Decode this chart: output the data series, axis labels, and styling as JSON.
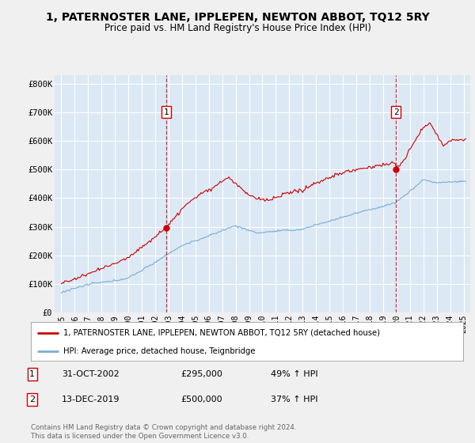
{
  "title": "1, PATERNOSTER LANE, IPPLEPEN, NEWTON ABBOT, TQ12 5RY",
  "subtitle": "Price paid vs. HM Land Registry's House Price Index (HPI)",
  "fig_bg_color": "#f0f0f0",
  "plot_bg_color": "#dce9f5",
  "red_color": "#cc0000",
  "blue_color": "#7aadd4",
  "grid_color": "#ffffff",
  "annotation1": {
    "label": "1",
    "date_idx": 2002.83,
    "price": 295000,
    "x_label": "31-OCT-2002",
    "price_label": "£295,000",
    "pct_label": "49% ↑ HPI"
  },
  "annotation2": {
    "label": "2",
    "date_idx": 2019.95,
    "price": 500000,
    "x_label": "13-DEC-2019",
    "price_label": "£500,000",
    "pct_label": "37% ↑ HPI"
  },
  "legend_line1": "1, PATERNOSTER LANE, IPPLEPEN, NEWTON ABBOT, TQ12 5RY (detached house)",
  "legend_line2": "HPI: Average price, detached house, Teignbridge",
  "footer": "Contains HM Land Registry data © Crown copyright and database right 2024.\nThis data is licensed under the Open Government Licence v3.0.",
  "ylabel_ticks": [
    0,
    100000,
    200000,
    300000,
    400000,
    500000,
    600000,
    700000,
    800000
  ],
  "ylabel_labels": [
    "£0",
    "£100K",
    "£200K",
    "£300K",
    "£400K",
    "£500K",
    "£600K",
    "£700K",
    "£800K"
  ],
  "xlim": [
    1994.5,
    2025.5
  ],
  "ylim": [
    0,
    830000
  ],
  "xticks": [
    1995,
    1996,
    1997,
    1998,
    1999,
    2000,
    2001,
    2002,
    2003,
    2004,
    2005,
    2006,
    2007,
    2008,
    2009,
    2010,
    2011,
    2012,
    2013,
    2014,
    2015,
    2016,
    2017,
    2018,
    2019,
    2020,
    2021,
    2022,
    2023,
    2024,
    2025
  ]
}
